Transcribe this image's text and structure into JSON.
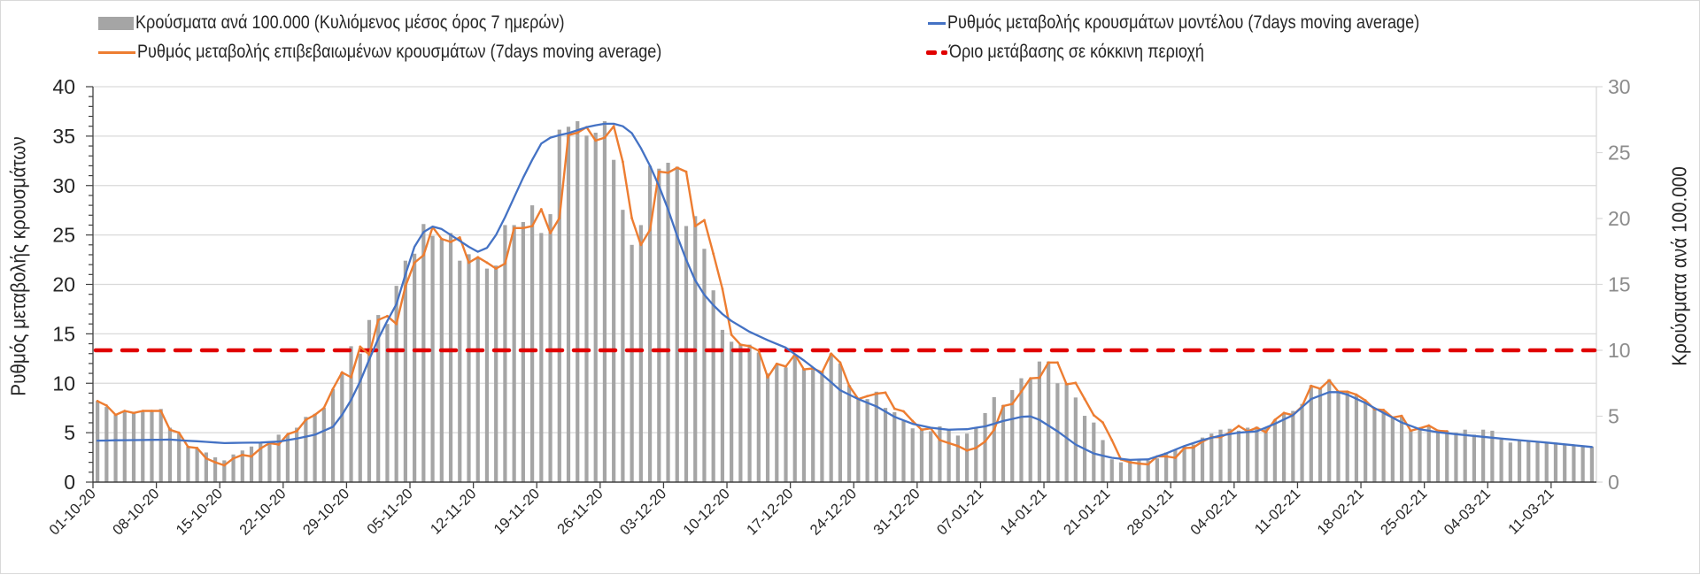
{
  "chart_data": {
    "type": "bar+line",
    "title": "",
    "legend": [
      {
        "name": "Κρούσματα ανά 100.000 (Κυλιόμενος μέσος όρος 7 ημερών)",
        "kind": "bar",
        "color": "#a5a5a5"
      },
      {
        "name": "Ρυθμός μεταβολής επιβεβαιωμένων κρουσμάτων (7days moving average)",
        "kind": "line",
        "color": "#ed7d31"
      },
      {
        "name": "Ρυθμός μεταβολής κρουσμάτων μοντέλου (7days moving average)",
        "kind": "line",
        "color": "#4472c4"
      },
      {
        "name": "Όριο μετάβασης σε κόκκινη περιοχή",
        "kind": "dashed-line",
        "color": "#e00000"
      }
    ],
    "legend_position": "top",
    "ylabel_left": "Ρυθμός μεταβολής κρουσμάτων",
    "ylabel_right": "Κρούσματα ανά 100.000",
    "ylim_left": [
      0,
      40
    ],
    "ylim_right": [
      0,
      30
    ],
    "yticks_left": [
      "0",
      "5",
      "10",
      "15",
      "20",
      "25",
      "30",
      "35",
      "40"
    ],
    "yticks_right": [
      "0",
      "5",
      "10",
      "15",
      "20",
      "25",
      "30"
    ],
    "grid": "horizontal",
    "x_start_date": "01-10-20",
    "x_days": 166,
    "xtick_every_days": 7,
    "xticks": [
      "01-10-20",
      "08-10-20",
      "15-10-20",
      "22-10-20",
      "29-10-20",
      "05-11-20",
      "12-11-20",
      "19-11-20",
      "26-11-20",
      "03-12-20",
      "10-12-20",
      "17-12-20",
      "24-12-20",
      "31-12-20",
      "07-01-21",
      "14-01-21",
      "21-01-21",
      "28-01-21",
      "04-02-21",
      "11-02-21",
      "18-02-21",
      "25-02-21",
      "04-03-21",
      "11-03-21"
    ],
    "series": [
      {
        "name": "Κρούσματα ανά 100.000 (Κυλιόμενος μέσος όρος 7 ημερών)",
        "type": "bar",
        "axis": "right",
        "color": "#a5a5a5",
        "values": [
          6.15,
          5.7,
          5.1,
          5.4,
          5.25,
          5.4,
          5.4,
          5.55,
          4.13,
          3.68,
          2.7,
          2.55,
          2.25,
          1.88,
          1.65,
          2.1,
          2.4,
          2.7,
          2.93,
          3.0,
          3.6,
          3.6,
          4.13,
          4.95,
          5.18,
          5.63,
          7.05,
          8.33,
          10.31,
          9.75,
          12.3,
          12.68,
          12.0,
          14.89,
          16.8,
          17.33,
          19.58,
          18.68,
          18.45,
          18.9,
          16.8,
          17.29,
          16.95,
          16.2,
          16.43,
          19.5,
          19.5,
          19.73,
          21.0,
          18.9,
          20.33,
          26.74,
          26.96,
          27.38,
          26.29,
          26.51,
          27.38,
          24.45,
          20.66,
          18.0,
          19.5,
          24.0,
          23.78,
          24.23,
          23.93,
          19.43,
          20.18,
          17.7,
          14.55,
          11.55,
          10.65,
          10.5,
          10.43,
          9.83,
          8.25,
          8.93,
          8.7,
          9.68,
          8.63,
          8.63,
          8.4,
          9.75,
          9.0,
          7.35,
          6.38,
          6.3,
          6.86,
          5.63,
          5.3,
          4.65,
          4.08,
          4.08,
          3.86,
          4.23,
          3.98,
          3.53,
          3.68,
          4.08,
          5.24,
          6.45,
          5.85,
          6.98,
          7.88,
          7.8,
          9.15,
          9.15,
          7.5,
          7.5,
          6.42,
          5.03,
          4.52,
          3.19,
          1.73,
          1.5,
          1.63,
          1.73,
          1.65,
          1.8,
          2.25,
          2.48,
          2.7,
          2.85,
          3.38,
          3.68,
          3.98,
          4.05,
          3.9,
          4.13,
          4.2,
          4.13,
          4.73,
          5.25,
          5.4,
          5.93,
          7.35,
          7.13,
          7.8,
          6.9,
          6.9,
          6.6,
          6.15,
          5.55,
          5.4,
          4.88,
          4.95,
          3.98,
          4.05,
          4.2,
          3.98,
          3.9,
          3.75,
          3.98,
          3.6,
          3.98,
          3.9,
          3.23,
          3.0,
          3.19,
          3.15,
          3.0,
          3.0,
          3.0,
          2.85,
          2.81,
          2.78,
          2.7
        ]
      },
      {
        "name": "Ρυθμός μεταβολής επιβεβαιωμένων κρουσμάτων (7days moving average)",
        "type": "line",
        "axis": "left",
        "color": "#ed7d31",
        "values": [
          8.2,
          7.75,
          6.8,
          7.2,
          7.0,
          7.2,
          7.2,
          7.2,
          5.3,
          5.0,
          3.56,
          3.45,
          2.4,
          2.0,
          1.7,
          2.4,
          2.75,
          2.6,
          3.4,
          3.95,
          3.8,
          4.85,
          5.15,
          6.3,
          6.8,
          7.5,
          9.45,
          11.1,
          10.6,
          13.7,
          12.9,
          16.4,
          16.8,
          16.0,
          19.8,
          22.2,
          22.95,
          25.8,
          24.6,
          24.3,
          24.75,
          22.2,
          22.75,
          22.2,
          21.6,
          22.1,
          25.7,
          25.7,
          25.9,
          27.6,
          25.2,
          26.7,
          35.1,
          35.35,
          35.9,
          34.55,
          34.85,
          36.0,
          32.4,
          26.7,
          24.0,
          25.5,
          31.4,
          31.3,
          31.8,
          31.4,
          25.9,
          26.5,
          23.1,
          19.55,
          14.9,
          13.9,
          13.75,
          13.3,
          10.6,
          11.97,
          11.7,
          12.9,
          11.4,
          11.5,
          11.1,
          13.0,
          12.1,
          9.74,
          8.4,
          8.7,
          8.94,
          9.06,
          7.43,
          7.16,
          6.18,
          5.3,
          5.44,
          4.25,
          3.95,
          3.65,
          3.2,
          3.45,
          4.1,
          5.3,
          7.7,
          7.9,
          9.15,
          10.5,
          10.55,
          12.1,
          12.1,
          9.9,
          10.04,
          8.4,
          6.77,
          6.03,
          4.25,
          2.3,
          2.0,
          1.87,
          1.8,
          2.6,
          2.6,
          2.46,
          3.44,
          3.5,
          4.1,
          4.55,
          4.55,
          5.0,
          5.68,
          5.14,
          5.5,
          5.05,
          6.3,
          7.0,
          6.77,
          7.66,
          9.74,
          9.45,
          10.3,
          9.15,
          9.15,
          8.85,
          8.26,
          7.37,
          7.3,
          6.53,
          6.7,
          5.2,
          5.44,
          5.73,
          5.2,
          5.14
        ]
      },
      {
        "name": "Ρυθμός μεταβολής κρουσμάτων μοντέλου (7days moving average)",
        "type": "line",
        "axis": "left",
        "color": "#4472c4",
        "values": [
          4.2,
          4.21,
          4.23,
          4.24,
          4.25,
          4.26,
          4.28,
          4.29,
          4.3,
          4.24,
          4.18,
          4.13,
          4.07,
          4.01,
          3.95,
          3.96,
          3.98,
          3.99,
          4.0,
          4.05,
          4.1,
          4.25,
          4.4,
          4.6,
          4.8,
          5.2,
          5.6,
          6.8,
          8.3,
          10.2,
          12.4,
          14.5,
          16.3,
          18.0,
          21.0,
          23.8,
          25.3,
          25.85,
          25.6,
          25.0,
          24.4,
          23.8,
          23.3,
          23.7,
          25.0,
          26.8,
          28.8,
          30.8,
          32.6,
          34.25,
          34.85,
          35.1,
          35.3,
          35.6,
          35.9,
          36.1,
          36.25,
          36.25,
          36.0,
          35.3,
          33.8,
          32.0,
          29.95,
          27.6,
          24.9,
          22.5,
          20.4,
          18.95,
          17.9,
          17.0,
          16.3,
          15.75,
          15.2,
          14.78,
          14.35,
          13.98,
          13.6,
          12.95,
          12.3,
          11.6,
          10.9,
          10.1,
          9.3,
          8.85,
          8.4,
          8.03,
          7.66,
          7.13,
          6.6,
          6.25,
          5.9,
          5.7,
          5.5,
          5.4,
          5.3,
          5.33,
          5.35,
          5.5,
          5.64,
          5.91,
          6.18,
          6.39,
          6.6,
          6.65,
          6.3,
          5.72,
          5.14,
          4.47,
          3.8,
          3.35,
          2.9,
          2.68,
          2.46,
          2.36,
          2.25,
          2.28,
          2.3,
          2.6,
          2.9,
          3.28,
          3.65,
          3.95,
          4.25,
          4.48,
          4.7,
          4.85,
          5.0,
          5.07,
          5.14,
          5.52,
          5.9,
          6.34,
          6.77,
          7.59,
          8.4,
          8.75,
          9.1,
          9.1,
          8.85,
          8.43,
          8.0,
          7.5,
          7.0,
          6.52,
          6.03,
          5.69,
          5.35,
          5.2,
          5.05,
          4.95,
          4.85,
          4.76,
          4.67,
          4.58,
          4.49,
          4.4,
          4.32,
          4.24,
          4.16,
          4.08,
          4.0,
          3.91,
          3.82,
          3.73,
          3.64,
          3.55
        ]
      },
      {
        "name": "Όριο μετάβασης σε κόκκινη περιοχή",
        "type": "hline",
        "axis": "right",
        "color": "#e00000",
        "value": 10
      }
    ]
  }
}
